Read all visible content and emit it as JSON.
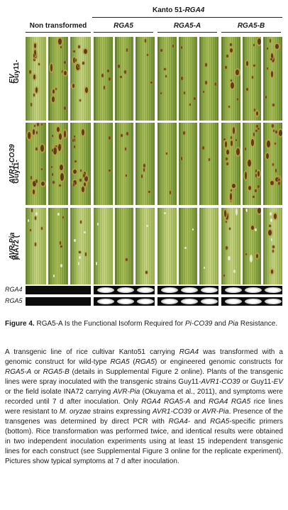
{
  "figure": {
    "top_header": {
      "prefix": "Kanto 51-",
      "italic": "RGA4"
    },
    "columns": [
      {
        "label": "Non transformed",
        "italic": false
      },
      {
        "label": "RGA5",
        "italic": true
      },
      {
        "label": "RGA5-A",
        "italic": true
      },
      {
        "label": "RGA5-B",
        "italic": true
      }
    ],
    "rows": [
      {
        "prefix": "Guy11-",
        "italic": "EV",
        "suffix": ""
      },
      {
        "prefix": "Guy11-",
        "italic": "AVR1-CO39",
        "suffix": ""
      },
      {
        "prefix": "INA72 (",
        "italic": "AVR-Pia",
        "suffix": ")"
      }
    ],
    "gel_rows": [
      {
        "label": "RGA4"
      },
      {
        "label": "RGA5"
      }
    ]
  },
  "caption": {
    "number": "Figure 4.",
    "text_a": " RGA5-A Is the Functional Isoform Required for ",
    "it_1": "Pi-CO39",
    "text_b": " and ",
    "it_2": "Pia",
    "text_c": " Resistance."
  },
  "body_text": [
    {
      "t": "A transgenic line of rice cultivar Kanto51 carrying "
    },
    {
      "t": "RGA4",
      "i": true
    },
    {
      "t": " was transformed with a genomic construct for wild-type "
    },
    {
      "t": "RGA5",
      "i": true
    },
    {
      "t": " ("
    },
    {
      "t": "RGA5",
      "i": true
    },
    {
      "t": ") or engineered genomic constructs for "
    },
    {
      "t": "RGA5-A",
      "i": true
    },
    {
      "t": " or "
    },
    {
      "t": "RGA5-B",
      "i": true
    },
    {
      "t": " (details in Supplemental Figure 2 online). Plants of the transgenic lines were spray inoculated with the transgenic strains Guy11-"
    },
    {
      "t": "AVR1-CO39",
      "i": true
    },
    {
      "t": " or Guy11-"
    },
    {
      "t": "EV",
      "i": true
    },
    {
      "t": " or the field isolate INA72 carrying "
    },
    {
      "t": "AVR-Pia",
      "i": true
    },
    {
      "t": " (Okuyama et al., 2011), and symptoms were recorded until 7 d after inoculation. Only "
    },
    {
      "t": "RGA4 RGA5-A",
      "i": true
    },
    {
      "t": " and "
    },
    {
      "t": "RGA4 RGA5",
      "i": true
    },
    {
      "t": " rice lines were resistant to "
    },
    {
      "t": "M. oryzae",
      "i": true
    },
    {
      "t": " strains expressing "
    },
    {
      "t": "AVR1-CO39",
      "i": true
    },
    {
      "t": " or "
    },
    {
      "t": "AVR-Pia",
      "i": true
    },
    {
      "t": ". Presence of the transgenes was determined by direct PCR with "
    },
    {
      "t": "RGA4",
      "i": true
    },
    {
      "t": "- and "
    },
    {
      "t": "RGA5",
      "i": true
    },
    {
      "t": "-specific primers (bottom). Rice transformation was performed twice, and identical results were obtained in two independent inoculation experiments using at least 15 independent transgenic lines for each construct (see Supplemental Figure 3 online for the replicate experiment). Pictures show typical symptoms at 7 d after inoculation."
    }
  ]
}
